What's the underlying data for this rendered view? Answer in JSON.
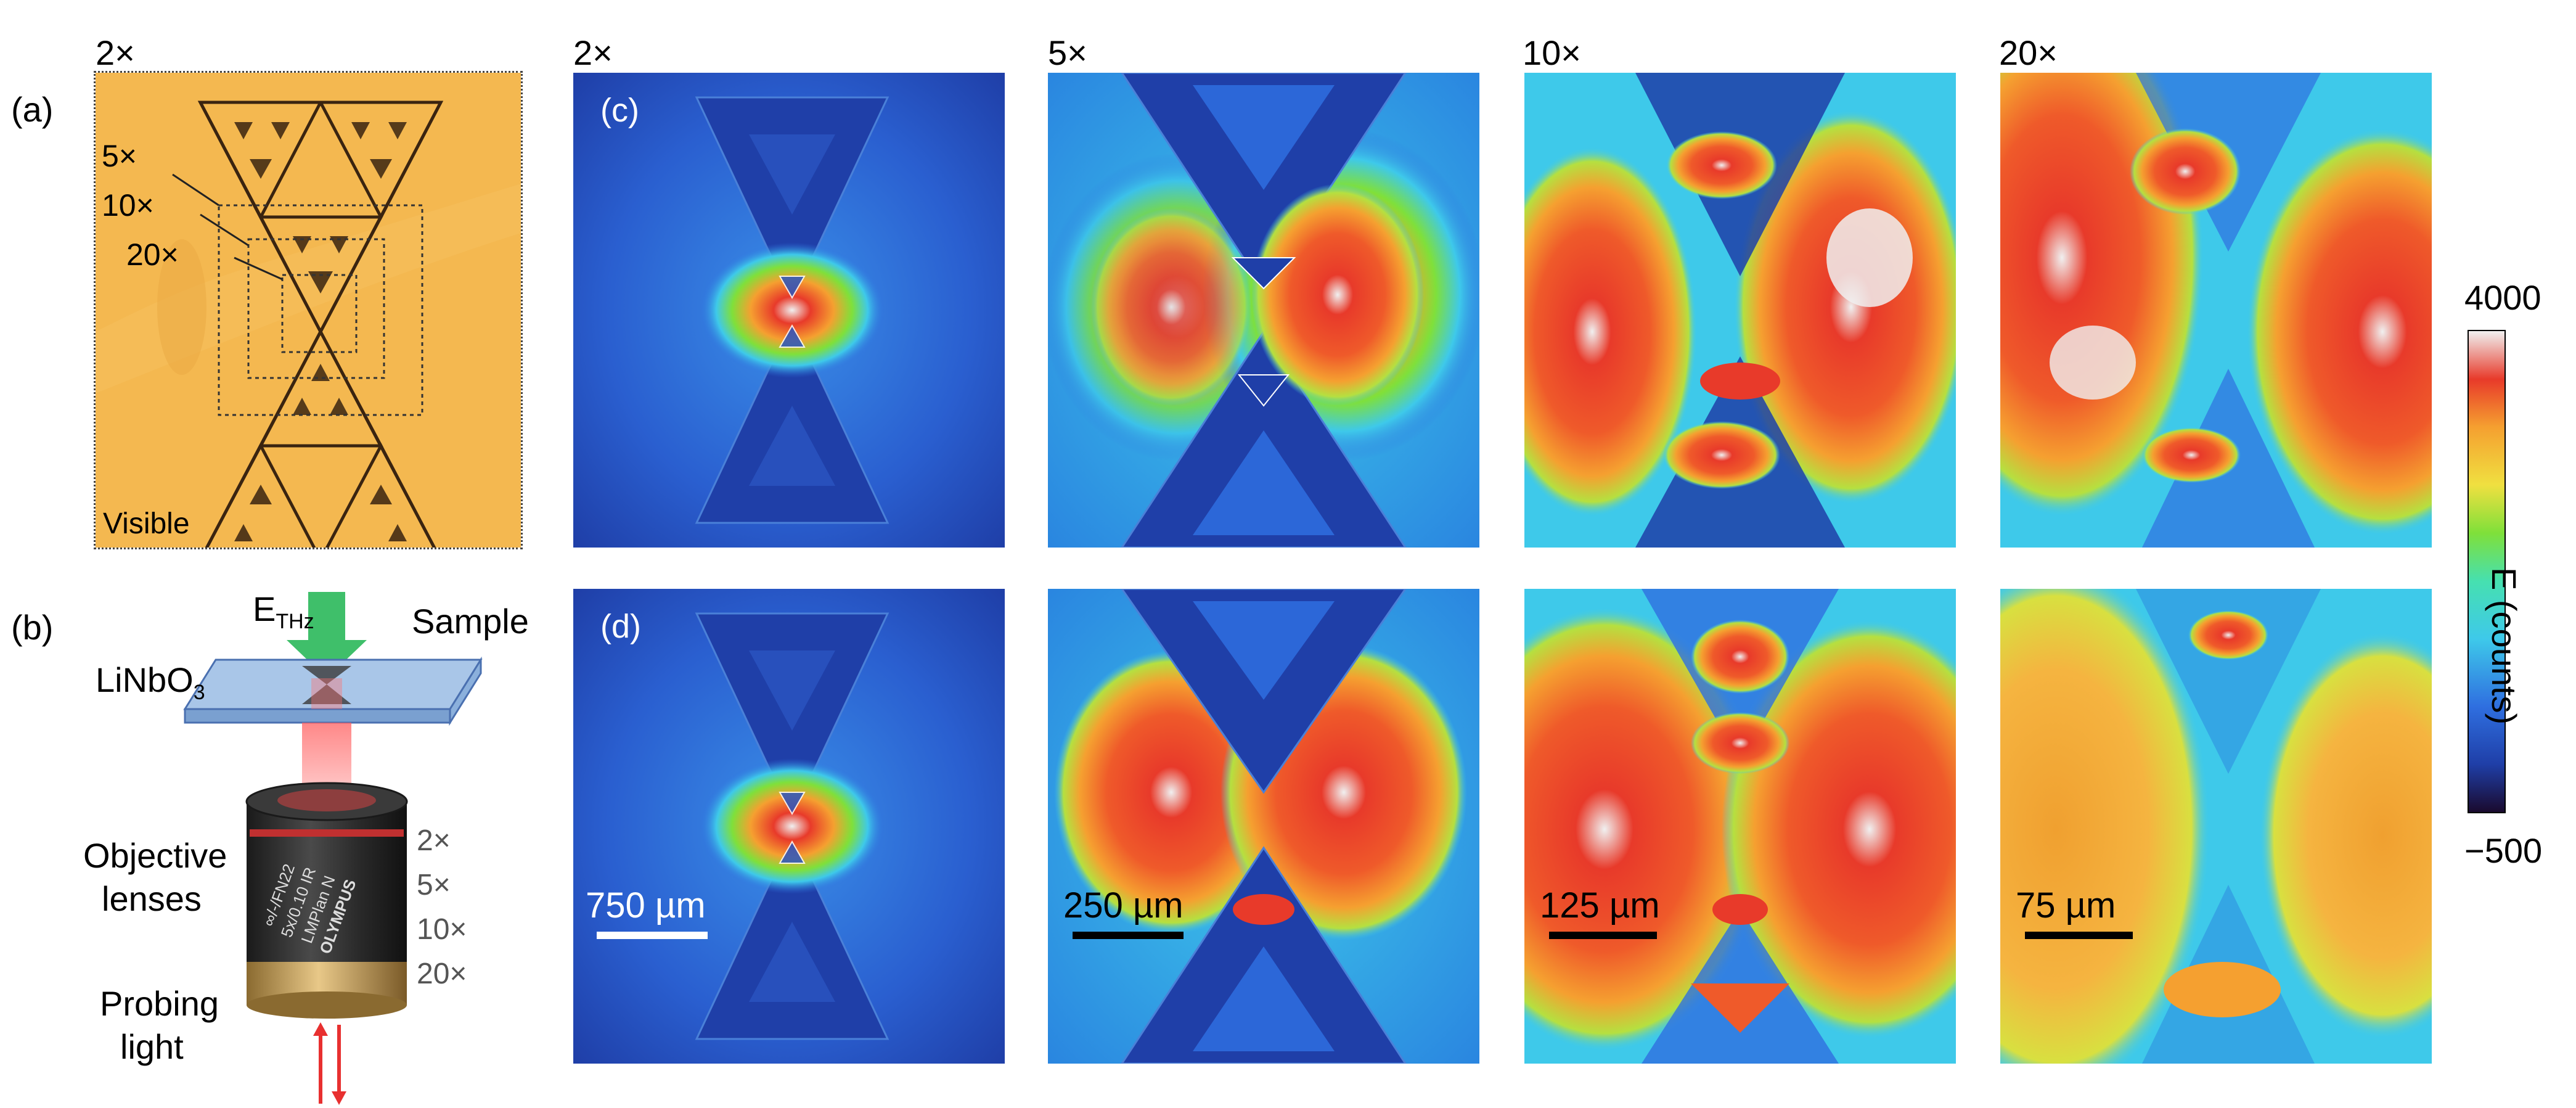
{
  "panel_letters": {
    "a": "(a)",
    "b": "(b)",
    "c": "(c)",
    "d": "(d)"
  },
  "column_mags": [
    "2×",
    "2×",
    "5×",
    "10×",
    "20×"
  ],
  "visible_panel": {
    "label": "Visible",
    "rect_labels": [
      "5×",
      "10×",
      "20×"
    ]
  },
  "schematic": {
    "field_label": "E",
    "field_sub": "THz",
    "sample_label": "Sample",
    "crystal_label": "LiNbO",
    "crystal_sub": "3",
    "objective_label_1": "Objective",
    "objective_label_2": "lenses",
    "magnifications": [
      "2×",
      "5×",
      "10×",
      "20×"
    ],
    "probing_1": "Probing",
    "probing_2": "light",
    "lens_text_1": "OLYMPUS",
    "lens_text_2": "LMPlan N",
    "lens_text_3": "5x/0.10 IR",
    "lens_text_4": "∞/-/FN22"
  },
  "scale_bars": [
    "750 µm",
    "250 µm",
    "125 µm",
    "75 µm"
  ],
  "colorbar": {
    "max_label": "4000",
    "min_label": "−500",
    "title": "E (counts)",
    "max": 4000,
    "min": -500,
    "colors": [
      "#1a0a2e",
      "#1f3fa8",
      "#2f6fe0",
      "#3ec9ea",
      "#46e0b0",
      "#7fe03a",
      "#f0e040",
      "#f5a030",
      "#e83a2a",
      "#f0f0f0"
    ]
  }
}
